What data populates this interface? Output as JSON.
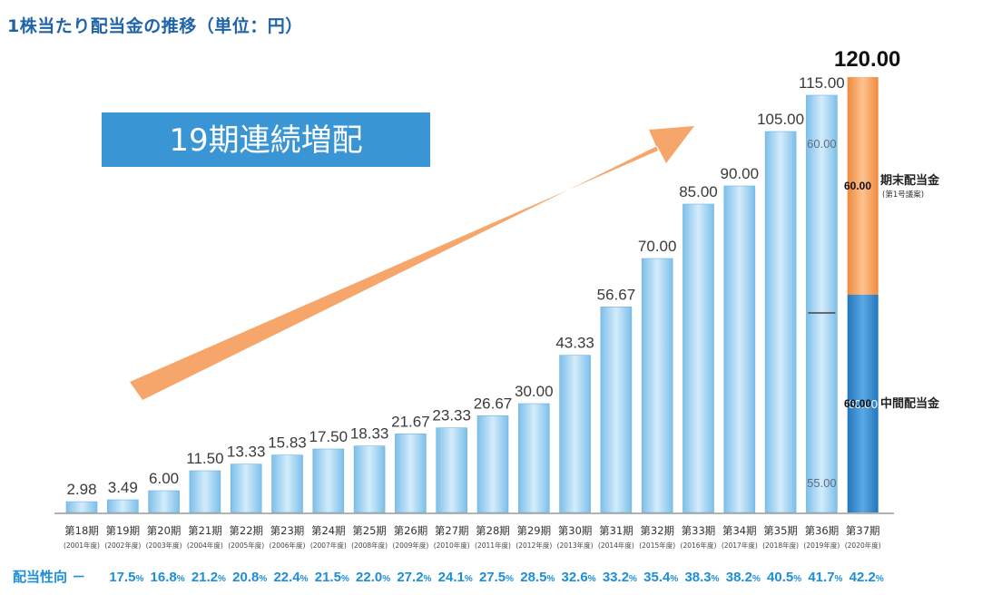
{
  "title": "1株当たり配当金の推移（単位：円）",
  "banner": "19期連続増配",
  "colors": {
    "title": "#1f63a8",
    "banner": "#3a95d4",
    "arrow": "#f6a66a",
    "bar_light": "#cfe8f8",
    "bar_mid": "#8cc8ee",
    "orange": "#f5a05c",
    "blue_dark": "#2f86cc",
    "payout": "#1d8ed8"
  },
  "chart_data": {
    "type": "bar",
    "ylim": [
      0,
      120
    ],
    "categories": [
      {
        "period": "第18期",
        "year": "(2001年度)"
      },
      {
        "period": "第19期",
        "year": "(2002年度)"
      },
      {
        "period": "第20期",
        "year": "(2003年度)"
      },
      {
        "period": "第21期",
        "year": "(2004年度)"
      },
      {
        "period": "第22期",
        "year": "(2005年度)"
      },
      {
        "period": "第23期",
        "year": "(2006年度)"
      },
      {
        "period": "第24期",
        "year": "(2007年度)"
      },
      {
        "period": "第25期",
        "year": "(2008年度)"
      },
      {
        "period": "第26期",
        "year": "(2009年度)"
      },
      {
        "period": "第27期",
        "year": "(2010年度)"
      },
      {
        "period": "第28期",
        "year": "(2011年度)"
      },
      {
        "period": "第29期",
        "year": "(2012年度)"
      },
      {
        "period": "第30期",
        "year": "(2013年度)"
      },
      {
        "period": "第31期",
        "year": "(2014年度)"
      },
      {
        "period": "第32期",
        "year": "(2015年度)"
      },
      {
        "period": "第33期",
        "year": "(2016年度)"
      },
      {
        "period": "第34期",
        "year": "(2017年度)"
      },
      {
        "period": "第35期",
        "year": "(2018年度)"
      },
      {
        "period": "第36期",
        "year": "(2019年度)"
      },
      {
        "period": "第37期",
        "year": "(2020年度)"
      }
    ],
    "values": [
      2.98,
      3.49,
      6.0,
      11.5,
      13.33,
      15.83,
      17.5,
      18.33,
      21.67,
      23.33,
      26.67,
      30.0,
      43.33,
      56.67,
      70.0,
      85.0,
      90.0,
      105.0,
      115.0,
      120.0
    ],
    "value_labels": [
      "2.98",
      "3.49",
      "6.00",
      "11.50",
      "13.33",
      "15.83",
      "17.50",
      "18.33",
      "21.67",
      "23.33",
      "26.67",
      "30.00",
      "43.33",
      "56.67",
      "70.00",
      "85.00",
      "90.00",
      "105.00",
      "115.00",
      "120.00"
    ],
    "split_bar": {
      "index": 18,
      "interim": 55.0,
      "year_end": 60.0,
      "interim_label": "55.00",
      "year_end_label": "60.00"
    },
    "stacked_bar": {
      "index": 19,
      "interim": 60.0,
      "year_end": 60.0,
      "interim_label": "60.00",
      "year_end_label": "60.00"
    },
    "side_labels": {
      "year_end_value": "60.00",
      "year_end": "期末配当金",
      "year_end_note": "(第1号議案)",
      "interim_value": "60.00",
      "interim": "中間配当金"
    },
    "payout_label": "配当性向 －",
    "payout_ratios": [
      "17.5",
      "16.8",
      "21.2",
      "20.8",
      "22.4",
      "21.5",
      "22.0",
      "27.2",
      "24.1",
      "27.5",
      "28.5",
      "32.6",
      "33.2",
      "35.4",
      "38.3",
      "38.2",
      "40.5",
      "41.7",
      "42.2"
    ],
    "payout_unit": "%"
  }
}
